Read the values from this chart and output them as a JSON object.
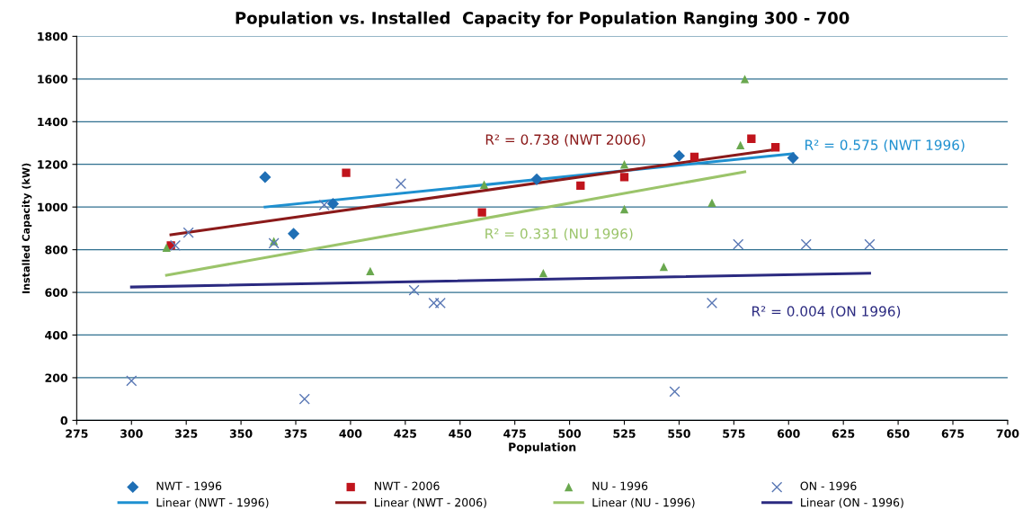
{
  "chart_data": {
    "type": "scatter",
    "title": "Population vs. Installed  Capacity for Population Ranging 300 - 700",
    "xlabel": "Population",
    "ylabel": "Installed Capacity (kW)",
    "xlim": [
      275,
      700
    ],
    "xticks": [
      275,
      300,
      325,
      350,
      375,
      400,
      425,
      450,
      475,
      500,
      525,
      550,
      575,
      600,
      625,
      650,
      675,
      700
    ],
    "ylim": [
      0,
      1800
    ],
    "yticks": [
      0,
      200,
      400,
      600,
      800,
      1000,
      1200,
      1400,
      1600,
      1800
    ],
    "grid": "y",
    "legend": "bottom",
    "series": [
      {
        "name": "NWT - 1996",
        "marker": "diamond",
        "color": "#1f6fb5",
        "x": [
          361,
          374,
          392,
          485,
          550,
          602
        ],
        "values": [
          1140,
          875,
          1015,
          1130,
          1240,
          1230
        ]
      },
      {
        "name": "Linear (NWT - 1996)",
        "type": "line",
        "marker": "none",
        "color": "#1e90d0",
        "x": [
          361,
          602
        ],
        "values": [
          1000,
          1250
        ]
      },
      {
        "name": "NWT - 2006",
        "marker": "square",
        "color": "#c0141c",
        "x": [
          318,
          398,
          460,
          505,
          525,
          557,
          583,
          594
        ],
        "values": [
          820,
          1160,
          975,
          1100,
          1140,
          1235,
          1320,
          1280
        ]
      },
      {
        "name": "Linear (NWT - 2006)",
        "type": "line",
        "marker": "none",
        "color": "#8b1a1a",
        "x": [
          318,
          594
        ],
        "values": [
          870,
          1270
        ]
      },
      {
        "name": "NU - 1996",
        "marker": "triangle",
        "color": "#6aa84f",
        "x": [
          316,
          365,
          409,
          461,
          488,
          525,
          525,
          543,
          565,
          578,
          580
        ],
        "values": [
          810,
          840,
          700,
          1105,
          690,
          1200,
          990,
          720,
          1020,
          1290,
          1600
        ]
      },
      {
        "name": "Linear (NU - 1996)",
        "type": "line",
        "marker": "none",
        "color": "#9bc46a",
        "x": [
          316,
          580
        ],
        "values": [
          680,
          1165
        ]
      },
      {
        "name": "ON - 1996",
        "marker": "cross",
        "color": "#5a78b5",
        "x": [
          300,
          320,
          326,
          365,
          379,
          388,
          423,
          429,
          438,
          441,
          548,
          565,
          577,
          608,
          637
        ],
        "values": [
          185,
          820,
          880,
          830,
          100,
          1010,
          1110,
          610,
          550,
          550,
          135,
          550,
          825,
          825,
          825
        ]
      },
      {
        "name": "Linear (ON - 1996)",
        "type": "line",
        "marker": "none",
        "color": "#2b2a80",
        "x": [
          300,
          637
        ],
        "values": [
          625,
          690
        ]
      }
    ],
    "annotations": [
      "R² = 0.575 (NWT 1996)",
      "R² = 0.738 (NWT 2006)",
      "R² = 0.331 (NU 1996)",
      "R² = 0.004 (ON 1996)"
    ]
  }
}
